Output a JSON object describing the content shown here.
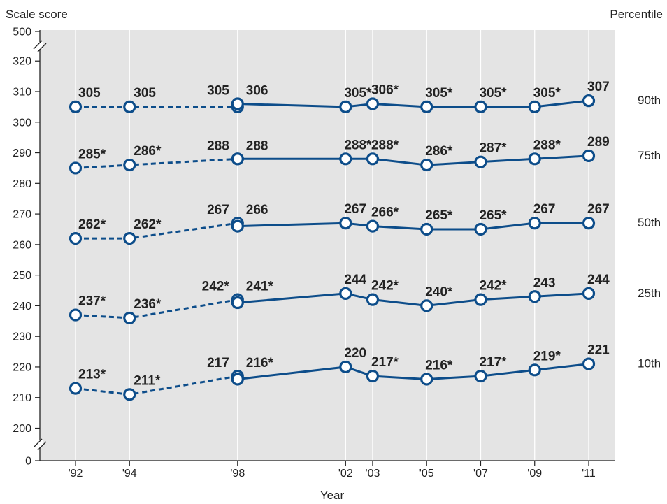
{
  "header": {
    "left_title": "Scale score",
    "right_title": "Percentile"
  },
  "chart_data": {
    "type": "line",
    "xlabel": "Year",
    "ylabel": "Scale score",
    "x": [
      "'92",
      "'94",
      "'98",
      "'02",
      "'03",
      "'05",
      "'07",
      "'09",
      "'11"
    ],
    "x_years": [
      1992,
      1994,
      1998,
      2002,
      2003,
      2005,
      2007,
      2009,
      2011
    ],
    "ylim": [
      200,
      320
    ],
    "y_ticks": [
      0,
      200,
      210,
      220,
      230,
      240,
      250,
      260,
      270,
      280,
      290,
      300,
      310,
      320,
      500
    ],
    "y_axis_breaks": "between 0 and 200; between 320 and 500",
    "line_color": "#0d4d8a",
    "plot_background": "#e4e4e4",
    "grid": "vertical lines at each year",
    "series": [
      {
        "name": "90th",
        "values": [
          305,
          305,
          305,
          305,
          306,
          305,
          305,
          305,
          307
        ],
        "values_1998_second": 306,
        "labels": [
          "305",
          "305",
          "305",
          "305*",
          "306*",
          "305*",
          "305*",
          "305*",
          "307"
        ],
        "label_1998_second": "306"
      },
      {
        "name": "75th",
        "values": [
          285,
          286,
          288,
          288,
          288,
          286,
          287,
          288,
          289
        ],
        "values_1998_second": 288,
        "labels": [
          "285*",
          "286*",
          "288",
          "288*",
          "288*",
          "286*",
          "287*",
          "288*",
          "289"
        ],
        "label_1998_second": "288"
      },
      {
        "name": "50th",
        "values": [
          262,
          262,
          267,
          267,
          266,
          265,
          265,
          267,
          267
        ],
        "values_1998_second": 266,
        "labels": [
          "262*",
          "262*",
          "267",
          "267",
          "266*",
          "265*",
          "265*",
          "267",
          "267"
        ],
        "label_1998_second": "266"
      },
      {
        "name": "25th",
        "values": [
          237,
          236,
          242,
          244,
          242,
          240,
          242,
          243,
          244
        ],
        "values_1998_second": 241,
        "labels": [
          "237*",
          "236*",
          "242*",
          "244",
          "242*",
          "240*",
          "242*",
          "243",
          "244"
        ],
        "label_1998_second": "241*"
      },
      {
        "name": "10th",
        "values": [
          213,
          211,
          217,
          220,
          217,
          216,
          217,
          219,
          221
        ],
        "values_1998_second": 216,
        "labels": [
          "213*",
          "211*",
          "217",
          "220",
          "217*",
          "216*",
          "217*",
          "219*",
          "221"
        ],
        "label_1998_second": "216*"
      }
    ]
  }
}
